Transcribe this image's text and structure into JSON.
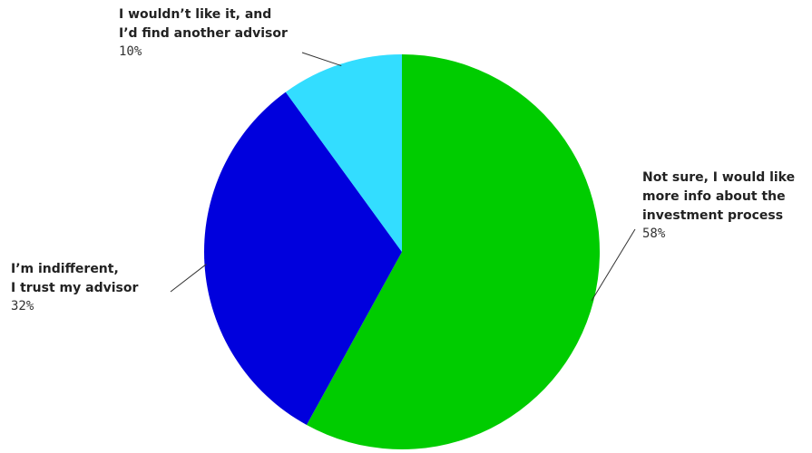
{
  "chart_data": {
    "type": "pie",
    "title": "",
    "start_angle_deg": 0,
    "direction": "clockwise",
    "slices": [
      {
        "label_lines": [
          "Not sure, I would like",
          "more info about the",
          "investment process"
        ],
        "value": 58,
        "value_label": "58%",
        "color": "#00cc00"
      },
      {
        "label_lines": [
          "I’m indifferent,",
          "I trust my advisor"
        ],
        "value": 32,
        "value_label": "32%",
        "color": "#0000dd"
      },
      {
        "label_lines": [
          "I wouldn’t like it, and",
          "I’d find another advisor"
        ],
        "value": 10,
        "value_label": "10%",
        "color": "#33ddff"
      }
    ]
  }
}
